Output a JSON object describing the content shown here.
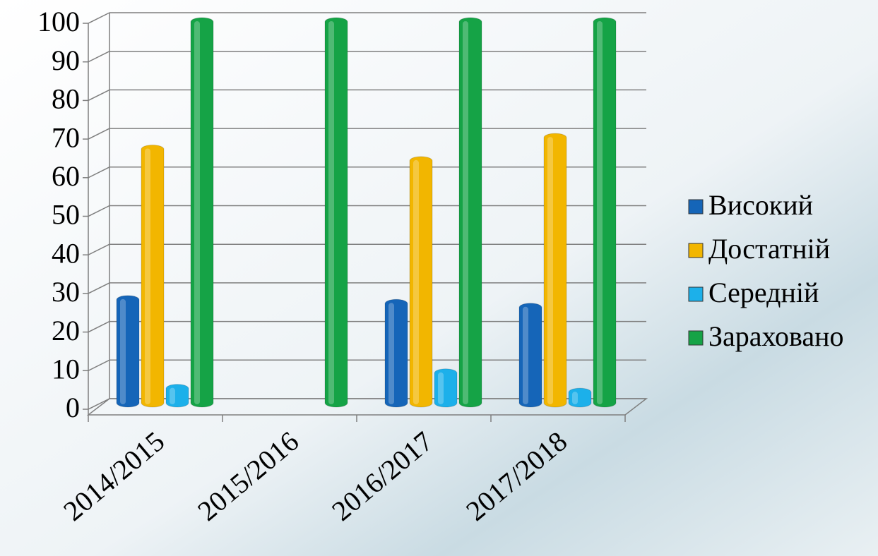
{
  "chart_data": {
    "type": "bar3d",
    "categories": [
      "2014/2015",
      "2015/2016",
      "2016/2017",
      "2017/2018"
    ],
    "series": [
      {
        "name": "Високий",
        "color": "#1565b8",
        "values": [
          28,
          null,
          27,
          26
        ]
      },
      {
        "name": "Достатній",
        "color": "#f2b600",
        "values": [
          67,
          null,
          64,
          70
        ]
      },
      {
        "name": "Середній",
        "color": "#1cb0ea",
        "values": [
          5,
          null,
          9,
          4
        ]
      },
      {
        "name": "Зараховано",
        "color": "#15a346",
        "values": [
          100,
          100,
          100,
          100
        ]
      }
    ],
    "ylim": [
      0,
      100
    ],
    "yticks": [
      0,
      10,
      20,
      30,
      40,
      50,
      60,
      70,
      80,
      90,
      100
    ],
    "grid": true,
    "legend": "right"
  }
}
